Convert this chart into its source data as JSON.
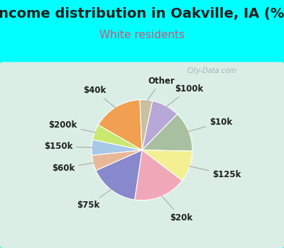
{
  "title": "Income distribution in Oakville, IA (%)",
  "subtitle": "White residents",
  "fig_bg": "#00ffff",
  "box_bg_left": "#d8ece0",
  "box_bg_right": "#e8f8f0",
  "labels": [
    "$100k",
    "$10k",
    "$125k",
    "$20k",
    "$75k",
    "$60k",
    "$150k",
    "$200k",
    "$40k",
    "Other"
  ],
  "values": [
    9,
    13,
    10,
    17,
    16,
    5,
    5,
    5,
    16,
    4
  ],
  "colors": [
    "#b8a8d8",
    "#a8c0a0",
    "#f2f090",
    "#f0a8b8",
    "#8888cc",
    "#e8b898",
    "#a8c8e8",
    "#c8e870",
    "#f0a050",
    "#c8c0a0"
  ],
  "startangle": 78,
  "title_color": "#202020",
  "subtitle_color": "#cc5577",
  "title_fontsize": 14,
  "subtitle_fontsize": 11,
  "label_fontsize": 8.5,
  "label_color": "#202020",
  "line_color": "#aaaaaa"
}
